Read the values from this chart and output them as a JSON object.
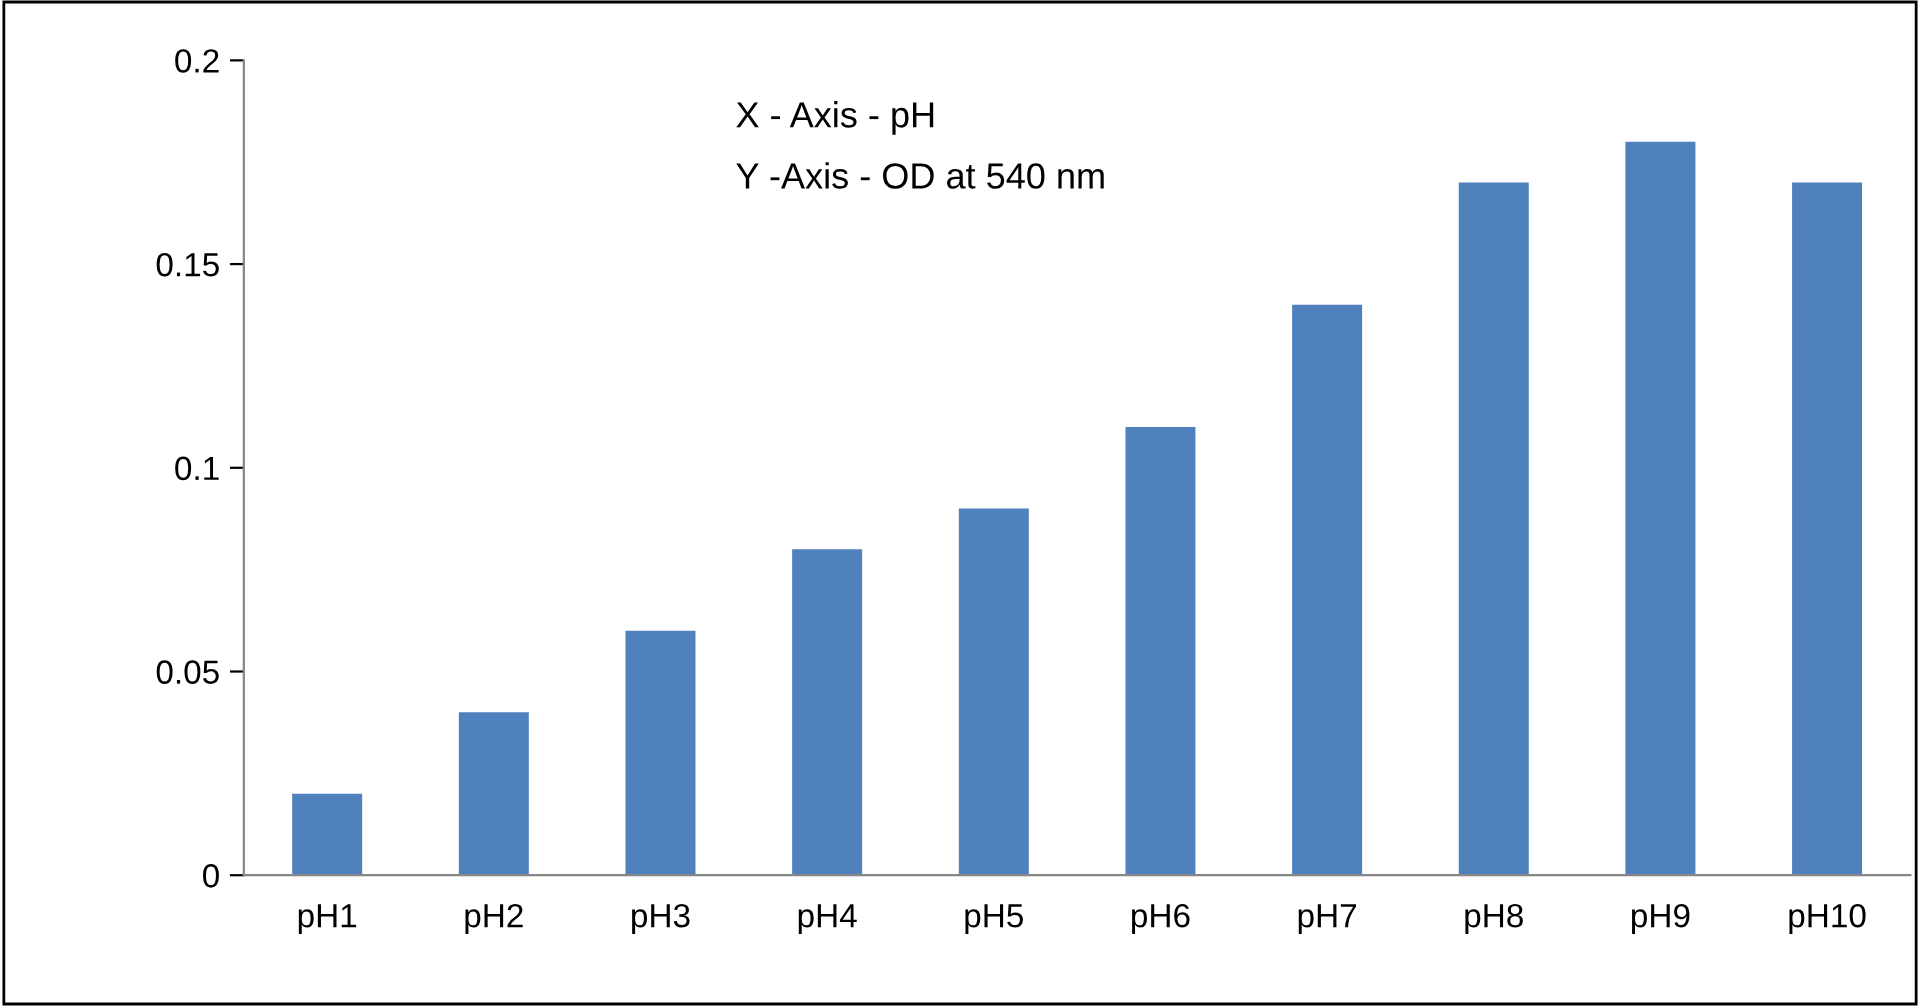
{
  "chart_data": {
    "type": "bar",
    "categories": [
      "pH1",
      "pH2",
      "pH3",
      "pH4",
      "pH5",
      "pH6",
      "pH7",
      "pH8",
      "pH9",
      "pH10"
    ],
    "values": [
      0.02,
      0.04,
      0.06,
      0.08,
      0.09,
      0.11,
      0.14,
      0.17,
      0.18,
      0.17
    ],
    "color": "#4f81bd",
    "ylim": [
      0,
      0.2
    ],
    "yticks": [
      0,
      0.05,
      0.1,
      0.15,
      0.2
    ],
    "annotations": [
      "X - Axis - pH",
      "Y -Axis - OD at 540 nm"
    ],
    "grid": false,
    "legend": false
  }
}
